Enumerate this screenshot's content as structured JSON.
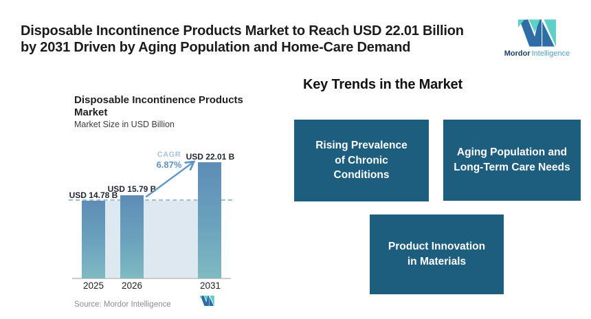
{
  "header": {
    "title_line1": "Disposable Incontinence Products Market to Reach USD 22.01 Billion",
    "title_line2": "by 2031 Driven by Aging Population and Home-Care Demand"
  },
  "brand": {
    "name_primary": "Mordor",
    "name_secondary": "Intelligence"
  },
  "chart": {
    "title_line1": "Disposable Incontinence Products",
    "title_line2": "Market",
    "subtitle": "Market Size in USD Billion",
    "cagr_label": "CAGR",
    "cagr_value": "6.87%",
    "source": "Source: Mordor Intelligence",
    "bars": [
      {
        "year": "2025",
        "label": "USD 14.78 B",
        "value": 14.78
      },
      {
        "year": "2026",
        "label": "USD 15.79 B",
        "value": 15.79
      },
      {
        "year": "2031",
        "label": "USD 22.01 B",
        "value": 22.01
      }
    ]
  },
  "chart_data": {
    "type": "bar",
    "categories": [
      "2025",
      "2026",
      "2031"
    ],
    "values": [
      14.78,
      15.79,
      22.01
    ],
    "title": "Disposable Incontinence Products Market",
    "subtitle": "Market Size in USD Billion",
    "xlabel": "",
    "ylabel": "Market Size in USD Billion",
    "ylim": [
      0,
      24
    ],
    "grid": false,
    "legend": false,
    "annotations": [
      "USD 14.78 B",
      "USD 15.79 B",
      "USD 22.01 B",
      "CAGR 6.87%"
    ],
    "reference_line_y": 14.78,
    "source": "Source: Mordor Intelligence"
  },
  "trends": {
    "heading": "Key Trends in the Market",
    "boxes": [
      {
        "label": "Rising Prevalence of Chronic Conditions"
      },
      {
        "label": "Aging Population and Long-Term Care Needs"
      },
      {
        "label": "Product Innovation in Materials"
      }
    ]
  },
  "colors": {
    "trend_box_bg": "#1d5d7d",
    "trend_box_text": "#ffffff",
    "bar_gradient_top": "#5e8cb6",
    "bar_gradient_bottom": "#7fbac1",
    "area_fill": "#dde8f1",
    "dashed_line": "#9cbdd8",
    "arrow": "#6096c6",
    "cagr_label": "#a6c4de",
    "cagr_value": "#5e93c8",
    "logo_blue": "#2e6da6",
    "logo_teal": "#5ed0c7",
    "source_text": "#8c8c8c"
  }
}
